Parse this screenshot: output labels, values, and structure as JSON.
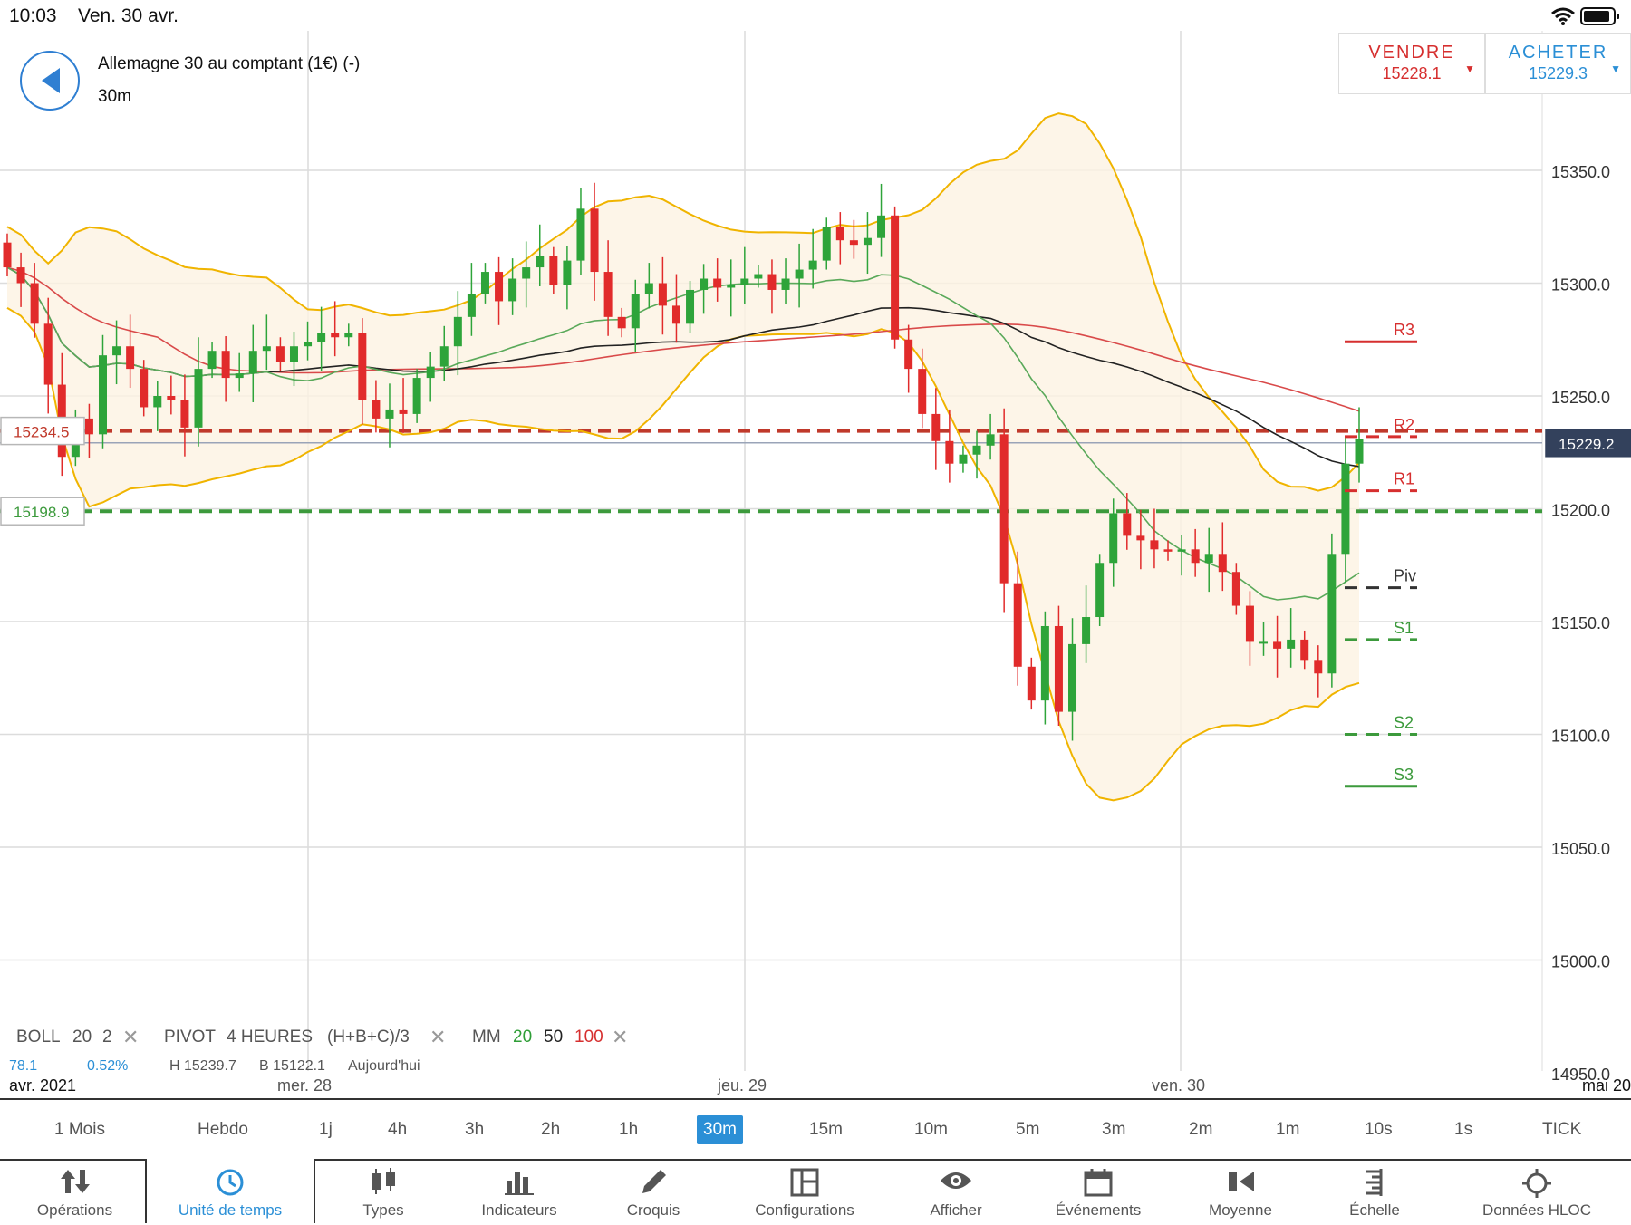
{
  "status": {
    "time": "10:03",
    "date": "Ven. 30 avr."
  },
  "instrument": {
    "name": "Allemagne 30 au comptant (1€) (-)",
    "timeframe": "30m"
  },
  "trade": {
    "sell_label": "VENDRE",
    "sell_price": "15228.1",
    "buy_label": "ACHETER",
    "buy_price": "15229.3"
  },
  "colors": {
    "red": "#d62f2f",
    "green": "#2f9e37",
    "blue": "#2b8fd6",
    "boll": "#f0b400",
    "sma50": "#222222"
  },
  "chart_data": {
    "type": "candlestick",
    "y_range": [
      14950,
      15390
    ],
    "y_ticks": [
      "15350.0",
      "15300.0",
      "15250.0",
      "15200.0",
      "15150.0",
      "15100.0",
      "15050.0",
      "15000.0",
      "14950.0"
    ],
    "x_labels": [
      "avr. 2021",
      "mer. 28",
      "jeu. 29",
      "ven. 30",
      "mai 20"
    ],
    "current_price": "15229.2",
    "level_red": "15234.5",
    "level_green": "15198.9",
    "pivots": [
      {
        "name": "R3",
        "value": 15274
      },
      {
        "name": "R2",
        "value": 15232
      },
      {
        "name": "R1",
        "value": 15208
      },
      {
        "name": "Piv",
        "value": 15165
      },
      {
        "name": "S1",
        "value": 15142
      },
      {
        "name": "S2",
        "value": 15100
      },
      {
        "name": "S3",
        "value": 15077
      }
    ],
    "closes": [
      15307,
      15300,
      15282,
      15255,
      15223,
      15240,
      15233,
      15268,
      15272,
      15262,
      15245,
      15250,
      15248,
      15236,
      15262,
      15270,
      15258,
      15260,
      15270,
      15272,
      15265,
      15272,
      15274,
      15278,
      15276,
      15278,
      15248,
      15240,
      15244,
      15242,
      15258,
      15263,
      15272,
      15285,
      15295,
      15305,
      15292,
      15302,
      15307,
      15312,
      15299,
      15310,
      15333,
      15305,
      15285,
      15280,
      15295,
      15300,
      15290,
      15282,
      15297,
      15302,
      15298,
      15299,
      15302,
      15304,
      15297,
      15302,
      15306,
      15310,
      15325,
      15319,
      15317,
      15320,
      15330,
      15275,
      15262,
      15242,
      15230,
      15220,
      15224,
      15228,
      15233,
      15167,
      15130,
      15115,
      15148,
      15110,
      15140,
      15152,
      15176,
      15198,
      15188,
      15186,
      15182,
      15181,
      15182,
      15176,
      15180,
      15172,
      15157,
      15141,
      15141,
      15138,
      15142,
      15133,
      15127,
      15180,
      15220,
      15231
    ]
  },
  "indicators": {
    "boll": {
      "name": "BOLL",
      "p1": "20",
      "p2": "2"
    },
    "pivot": {
      "name": "PIVOT",
      "p1": "4 HEURES",
      "p2": "(H+B+C)/3"
    },
    "mm": {
      "name": "MM",
      "p1": "20",
      "p2": "50",
      "p3": "100"
    },
    "sub": [
      "78.1",
      "0.52%",
      "H 15239.7",
      "B 15122.1",
      "Aujourd'hui"
    ]
  },
  "timeframes": [
    "1 Mois",
    "Hebdo",
    "1j",
    "4h",
    "3h",
    "2h",
    "1h",
    "30m",
    "15m",
    "10m",
    "5m",
    "3m",
    "2m",
    "1m",
    "10s",
    "1s",
    "TICK"
  ],
  "toolbar": [
    "Opérations",
    "Unité de temps",
    "Types",
    "Indicateurs",
    "Croquis",
    "Configurations",
    "Afficher",
    "Événements",
    "Moyenne",
    "Échelle",
    "Données HLOC"
  ]
}
